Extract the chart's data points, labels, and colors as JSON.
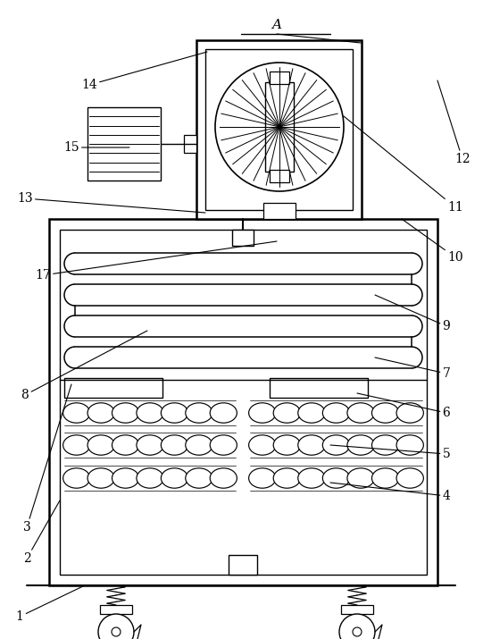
{
  "bg_color": "#ffffff",
  "line_color": "#000000",
  "fig_width": 5.41,
  "fig_height": 7.15,
  "dpi": 100
}
